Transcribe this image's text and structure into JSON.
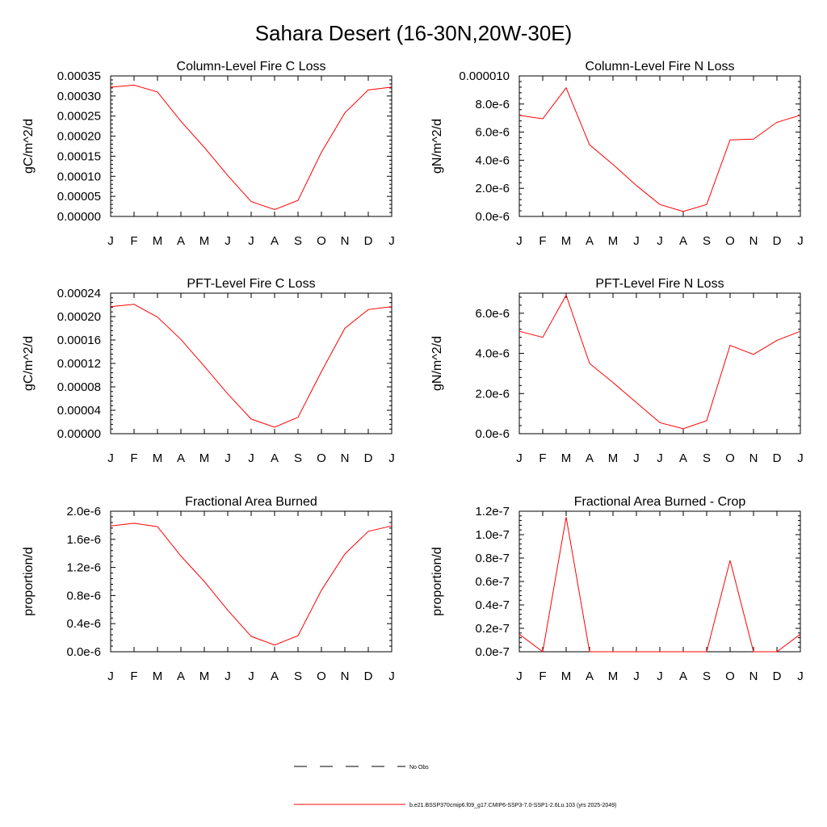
{
  "figure": {
    "title": "Sahara Desert (16-30N,20W-30E)",
    "months": [
      "J",
      "F",
      "M",
      "A",
      "M",
      "J",
      "J",
      "A",
      "S",
      "O",
      "N",
      "D",
      "J"
    ]
  },
  "legend": {
    "obs_label": "No Obs",
    "model_label": "b.e21.BSSP370cmip6.f09_g17.CMIP6-SSP3-7.0-SSP1-2.6Lu.103 (yrs 2025-2049)",
    "obs_color": "#000000",
    "model_color": "#ff0000"
  },
  "chart_data": [
    {
      "type": "line",
      "title": "Column-Level Fire C Loss",
      "ylabel": "gC/m^2/d",
      "ylim": [
        0,
        0.00035
      ],
      "yticks": [
        "0.00000",
        "0.00005",
        "0.00010",
        "0.00015",
        "0.00020",
        "0.00025",
        "0.00030",
        "0.00035"
      ],
      "x": [
        "J",
        "F",
        "M",
        "A",
        "M",
        "J",
        "J",
        "A",
        "S",
        "O",
        "N",
        "D",
        "J"
      ],
      "series": [
        {
          "values": [
            0.000322,
            0.000327,
            0.00031,
            0.000237,
            0.000172,
            0.000102,
            3.7e-05,
            1.7e-05,
            4e-05,
            0.00016,
            0.000258,
            0.000315,
            0.000322
          ],
          "color": "#ff0000"
        }
      ]
    },
    {
      "type": "line",
      "title": "Column-Level Fire N Loss",
      "ylabel": "gN/m^2/d",
      "ylim": [
        0,
        1e-05
      ],
      "yticks": [
        "0.0e-6",
        "2.0e-6",
        "4.0e-6",
        "6.0e-6",
        "8.0e-6",
        "0.000010"
      ],
      "x": [
        "J",
        "F",
        "M",
        "A",
        "M",
        "J",
        "J",
        "A",
        "S",
        "O",
        "N",
        "D",
        "J"
      ],
      "series": [
        {
          "values": [
            7.2e-06,
            6.95e-06,
            9.15e-06,
            5.1e-06,
            3.7e-06,
            2.2e-06,
            8.5e-07,
            3.5e-07,
            8.5e-07,
            5.45e-06,
            5.5e-06,
            6.7e-06,
            7.2e-06
          ],
          "color": "#ff0000"
        }
      ]
    },
    {
      "type": "line",
      "title": "PFT-Level Fire C Loss",
      "ylabel": "gC/m^2/d",
      "ylim": [
        0,
        0.00024
      ],
      "yticks": [
        "0.00000",
        "0.00004",
        "0.00008",
        "0.00012",
        "0.00016",
        "0.00020",
        "0.00024"
      ],
      "x": [
        "J",
        "F",
        "M",
        "A",
        "M",
        "J",
        "J",
        "A",
        "S",
        "O",
        "N",
        "D",
        "J"
      ],
      "series": [
        {
          "values": [
            0.000217,
            0.000221,
            0.000199,
            0.000161,
            0.000115,
            6.8e-05,
            2.5e-05,
            1.1e-05,
            2.8e-05,
            0.000106,
            0.00018,
            0.000212,
            0.000217
          ],
          "color": "#ff0000"
        }
      ]
    },
    {
      "type": "line",
      "title": "PFT-Level Fire N Loss",
      "ylabel": "gN/m^2/d",
      "ylim": [
        0,
        7e-06
      ],
      "yticks": [
        "0.0e-6",
        "2.0e-6",
        "4.0e-6",
        "6.0e-6"
      ],
      "x": [
        "J",
        "F",
        "M",
        "A",
        "M",
        "J",
        "J",
        "A",
        "S",
        "O",
        "N",
        "D",
        "J"
      ],
      "series": [
        {
          "values": [
            5.1e-06,
            4.8e-06,
            6.9e-06,
            3.5e-06,
            2.55e-06,
            1.55e-06,
            5.5e-07,
            2.5e-07,
            6.5e-07,
            4.4e-06,
            3.95e-06,
            4.65e-06,
            5.1e-06
          ],
          "color": "#ff0000"
        }
      ]
    },
    {
      "type": "line",
      "title": "Fractional Area Burned",
      "ylabel": "proportion/d",
      "ylim": [
        0,
        2.1e-06
      ],
      "yticks": [
        "0.0e-6",
        "0.4e-6",
        "0.8e-6",
        "1.2e-6",
        "1.6e-6",
        "2.0e-6"
      ],
      "x": [
        "J",
        "F",
        "M",
        "A",
        "M",
        "J",
        "J",
        "A",
        "S",
        "O",
        "N",
        "D",
        "J"
      ],
      "series": [
        {
          "values": [
            1.88e-06,
            1.92e-06,
            1.87e-06,
            1.43e-06,
            1.05e-06,
            6.2e-07,
            2.3e-07,
            1e-07,
            2.4e-07,
            9.2e-07,
            1.46e-06,
            1.8e-06,
            1.88e-06
          ],
          "color": "#ff0000"
        }
      ]
    },
    {
      "type": "line",
      "title": "Fractional Area Burned - Crop",
      "ylabel": "proportion/d",
      "ylim": [
        0,
        1.2e-07
      ],
      "yticks": [
        "0.0e-7",
        "0.2e-7",
        "0.4e-7",
        "0.6e-7",
        "0.8e-7",
        "1.0e-7",
        "1.2e-7"
      ],
      "x": [
        "J",
        "F",
        "M",
        "A",
        "M",
        "J",
        "J",
        "A",
        "S",
        "O",
        "N",
        "D",
        "J"
      ],
      "series": [
        {
          "values": [
            1.5e-08,
            0,
            1.15e-07,
            0,
            0,
            0,
            0,
            0,
            0,
            7.8e-08,
            0,
            0,
            1.5e-08
          ],
          "color": "#ff0000"
        }
      ]
    }
  ]
}
